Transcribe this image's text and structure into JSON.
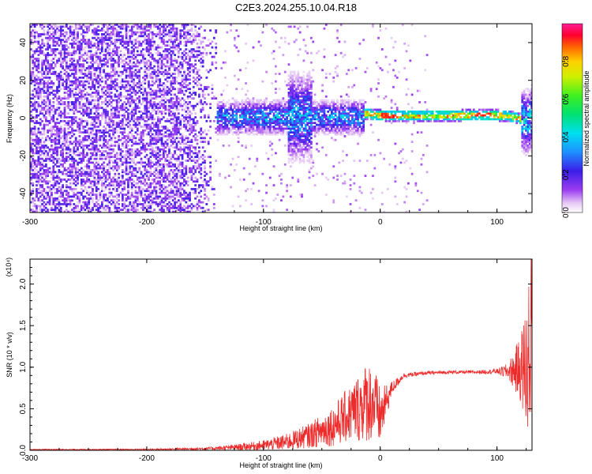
{
  "title": "C2E3.2024.255.10.04.R18",
  "chart_data": [
    {
      "type": "heatmap",
      "xlabel": "Height of straight line (km)",
      "ylabel": "Frequency (Hz)",
      "xlim": [
        -300,
        130
      ],
      "ylim": [
        -50,
        50
      ],
      "x_ticks": [
        "-300",
        "-200",
        "-100",
        "0",
        "100"
      ],
      "y_ticks": [
        "-40",
        "-20",
        "0",
        "20",
        "40"
      ],
      "colorbar": {
        "label": "Normalized spectral amplitude",
        "range": [
          0.0,
          1.0
        ],
        "ticks": [
          "0.0",
          "0.2",
          "0.4",
          "0.6",
          "0.8"
        ]
      },
      "regions": [
        {
          "x_range": [
            -300,
            -140
          ],
          "freq_spread": 50,
          "typical_amplitude": 0.15
        },
        {
          "x_range": [
            -140,
            -15
          ],
          "freq_spread": 10,
          "typical_amplitude": 0.35
        },
        {
          "x_range": [
            -80,
            -60
          ],
          "freq_spread": 25,
          "typical_amplitude": 0.3
        },
        {
          "x_range": [
            -15,
            120
          ],
          "freq_spread": 3,
          "typical_amplitude": 0.75
        },
        {
          "x_range": [
            120,
            130
          ],
          "freq_spread": 18,
          "typical_amplitude": 0.4
        }
      ],
      "ridge": {
        "x": [
          -15,
          0,
          20,
          60,
          90,
          110,
          120,
          125,
          130
        ],
        "freq": [
          2,
          1,
          0.5,
          0.8,
          1.5,
          0.5,
          -1,
          -3,
          0
        ]
      }
    },
    {
      "type": "line",
      "xlabel": "Height of straight line (km)",
      "ylabel": "SNR (10 * v/v)",
      "y_multiplier": "(x10⁴)",
      "xlim": [
        -300,
        130
      ],
      "ylim": [
        0,
        2.3
      ],
      "x_ticks": [
        "-300",
        "-200",
        "-100",
        "0",
        "100"
      ],
      "y_ticks": [
        "0.0",
        "0.5",
        "1.0",
        "1.5",
        "2.0"
      ],
      "series_color": "#ee2b2b",
      "x": [
        -300,
        -250,
        -200,
        -150,
        -130,
        -100,
        -80,
        -60,
        -40,
        -25,
        -10,
        -5,
        0,
        10,
        20,
        40,
        60,
        80,
        100,
        110,
        120,
        125,
        130
      ],
      "y_mean": [
        0.01,
        0.01,
        0.01,
        0.02,
        0.03,
        0.06,
        0.1,
        0.18,
        0.3,
        0.45,
        0.6,
        0.55,
        0.4,
        0.75,
        0.9,
        0.93,
        0.94,
        0.94,
        0.95,
        0.95,
        0.98,
        1.0,
        1.3
      ],
      "y_spread": [
        0.005,
        0.005,
        0.008,
        0.015,
        0.03,
        0.06,
        0.1,
        0.15,
        0.25,
        0.35,
        0.5,
        0.45,
        0.35,
        0.08,
        0.03,
        0.02,
        0.02,
        0.02,
        0.03,
        0.1,
        0.4,
        0.8,
        1.0
      ]
    }
  ]
}
